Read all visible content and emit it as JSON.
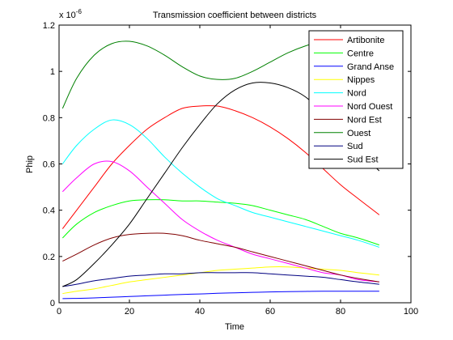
{
  "chart_data": {
    "type": "line",
    "title": "Transmission coefficient between districts",
    "xlabel": "Time",
    "ylabel": "Phip",
    "y_exponent_label": "x 10",
    "y_exponent_power": "-6",
    "xlim": [
      0,
      100
    ],
    "ylim": [
      0,
      1.2
    ],
    "x_ticks": [
      0,
      20,
      40,
      60,
      80,
      100
    ],
    "x_tick_labels": [
      "0",
      "20",
      "40",
      "60",
      "80",
      "100"
    ],
    "y_ticks": [
      0,
      0.2,
      0.4,
      0.6,
      0.8,
      1.0,
      1.2
    ],
    "y_tick_labels": [
      "0",
      "0.2",
      "0.4",
      "0.6",
      "0.8",
      "1",
      "1.2"
    ],
    "grid": false,
    "legend_position": "top-right",
    "x": [
      1,
      5,
      10,
      15,
      20,
      25,
      30,
      35,
      40,
      45,
      50,
      55,
      60,
      65,
      70,
      75,
      80,
      85,
      91
    ],
    "series": [
      {
        "name": "Artibonite",
        "color": "#ff0000",
        "values": [
          0.32,
          0.4,
          0.5,
          0.6,
          0.68,
          0.75,
          0.8,
          0.84,
          0.85,
          0.85,
          0.83,
          0.8,
          0.76,
          0.71,
          0.65,
          0.58,
          0.51,
          0.45,
          0.38
        ]
      },
      {
        "name": "Centre",
        "color": "#00ff00",
        "values": [
          0.28,
          0.34,
          0.39,
          0.42,
          0.44,
          0.445,
          0.445,
          0.44,
          0.44,
          0.435,
          0.43,
          0.42,
          0.4,
          0.38,
          0.36,
          0.33,
          0.3,
          0.28,
          0.25
        ]
      },
      {
        "name": "Grand Anse",
        "color": "#0000ff",
        "values": [
          0.018,
          0.019,
          0.021,
          0.024,
          0.027,
          0.03,
          0.033,
          0.036,
          0.038,
          0.041,
          0.043,
          0.045,
          0.047,
          0.048,
          0.049,
          0.05,
          0.05,
          0.05,
          0.05
        ]
      },
      {
        "name": "Nippes",
        "color": "#ffff00",
        "values": [
          0.04,
          0.05,
          0.06,
          0.075,
          0.09,
          0.1,
          0.11,
          0.12,
          0.13,
          0.14,
          0.145,
          0.15,
          0.155,
          0.155,
          0.15,
          0.145,
          0.14,
          0.13,
          0.12
        ]
      },
      {
        "name": "Nord",
        "color": "#00ffff",
        "values": [
          0.6,
          0.68,
          0.75,
          0.79,
          0.77,
          0.71,
          0.63,
          0.56,
          0.5,
          0.45,
          0.42,
          0.39,
          0.37,
          0.35,
          0.33,
          0.31,
          0.29,
          0.27,
          0.24
        ]
      },
      {
        "name": "Nord Ouest",
        "color": "#ff00ff",
        "values": [
          0.48,
          0.54,
          0.6,
          0.61,
          0.57,
          0.5,
          0.43,
          0.36,
          0.31,
          0.27,
          0.24,
          0.21,
          0.19,
          0.17,
          0.15,
          0.13,
          0.12,
          0.1,
          0.09
        ]
      },
      {
        "name": "Nord Est",
        "color": "#800000",
        "values": [
          0.18,
          0.21,
          0.25,
          0.28,
          0.295,
          0.3,
          0.3,
          0.29,
          0.27,
          0.255,
          0.24,
          0.22,
          0.2,
          0.18,
          0.16,
          0.14,
          0.12,
          0.105,
          0.09
        ]
      },
      {
        "name": "Ouest",
        "color": "#008000",
        "values": [
          0.84,
          0.97,
          1.07,
          1.12,
          1.13,
          1.11,
          1.07,
          1.02,
          0.98,
          0.965,
          0.97,
          1.0,
          1.04,
          1.08,
          1.11,
          1.13,
          1.14,
          1.15,
          1.15
        ]
      },
      {
        "name": "Sud",
        "color": "#000080",
        "values": [
          0.07,
          0.08,
          0.095,
          0.105,
          0.115,
          0.12,
          0.125,
          0.125,
          0.13,
          0.13,
          0.13,
          0.13,
          0.125,
          0.12,
          0.115,
          0.11,
          0.1,
          0.09,
          0.08
        ]
      },
      {
        "name": "Sud Est",
        "color": "#000000",
        "values": [
          0.07,
          0.1,
          0.17,
          0.25,
          0.34,
          0.45,
          0.56,
          0.67,
          0.77,
          0.86,
          0.92,
          0.95,
          0.95,
          0.93,
          0.89,
          0.82,
          0.74,
          0.66,
          0.57
        ]
      }
    ]
  }
}
